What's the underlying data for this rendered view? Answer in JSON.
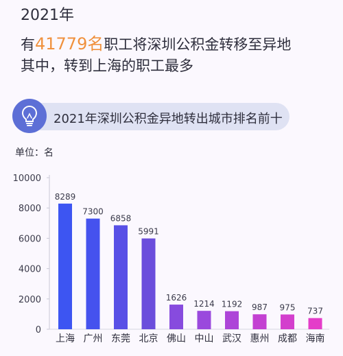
{
  "header": {
    "year": "2021年",
    "prefix": "有",
    "count": "41779名",
    "suffix": "职工将深圳公积金转移至异地",
    "line2": "其中，转到上海的职工最多"
  },
  "banner": {
    "icon": "lightbulb-icon",
    "title": "2021年深圳公积金异地转出城市排名前十"
  },
  "unit_label": "单位：名",
  "colors": {
    "accent": "#f0913d",
    "banner_bg": "#dfe2f3",
    "bulb_bg": "#5d6fd6"
  },
  "chart_data": {
    "type": "bar",
    "title": "2021年深圳公积金异地转出城市排名前十",
    "ylabel": "单位：名",
    "xlabel": "",
    "categories": [
      "上海",
      "广州",
      "东莞",
      "北京",
      "佛山",
      "中山",
      "武汉",
      "惠州",
      "成都",
      "海南"
    ],
    "values": [
      8289,
      7300,
      6858,
      5991,
      1626,
      1214,
      1192,
      987,
      975,
      737
    ],
    "ylim": [
      0,
      10000
    ],
    "yticks": [
      0,
      2000,
      4000,
      6000,
      8000,
      10000
    ],
    "grid": false,
    "bar_colors": [
      "#3d55f2",
      "#4552ee",
      "#5850e6",
      "#6b4edc",
      "#874bde",
      "#9a49dd",
      "#ad45d8",
      "#c341d2",
      "#d33fcd",
      "#e43dc9"
    ]
  }
}
